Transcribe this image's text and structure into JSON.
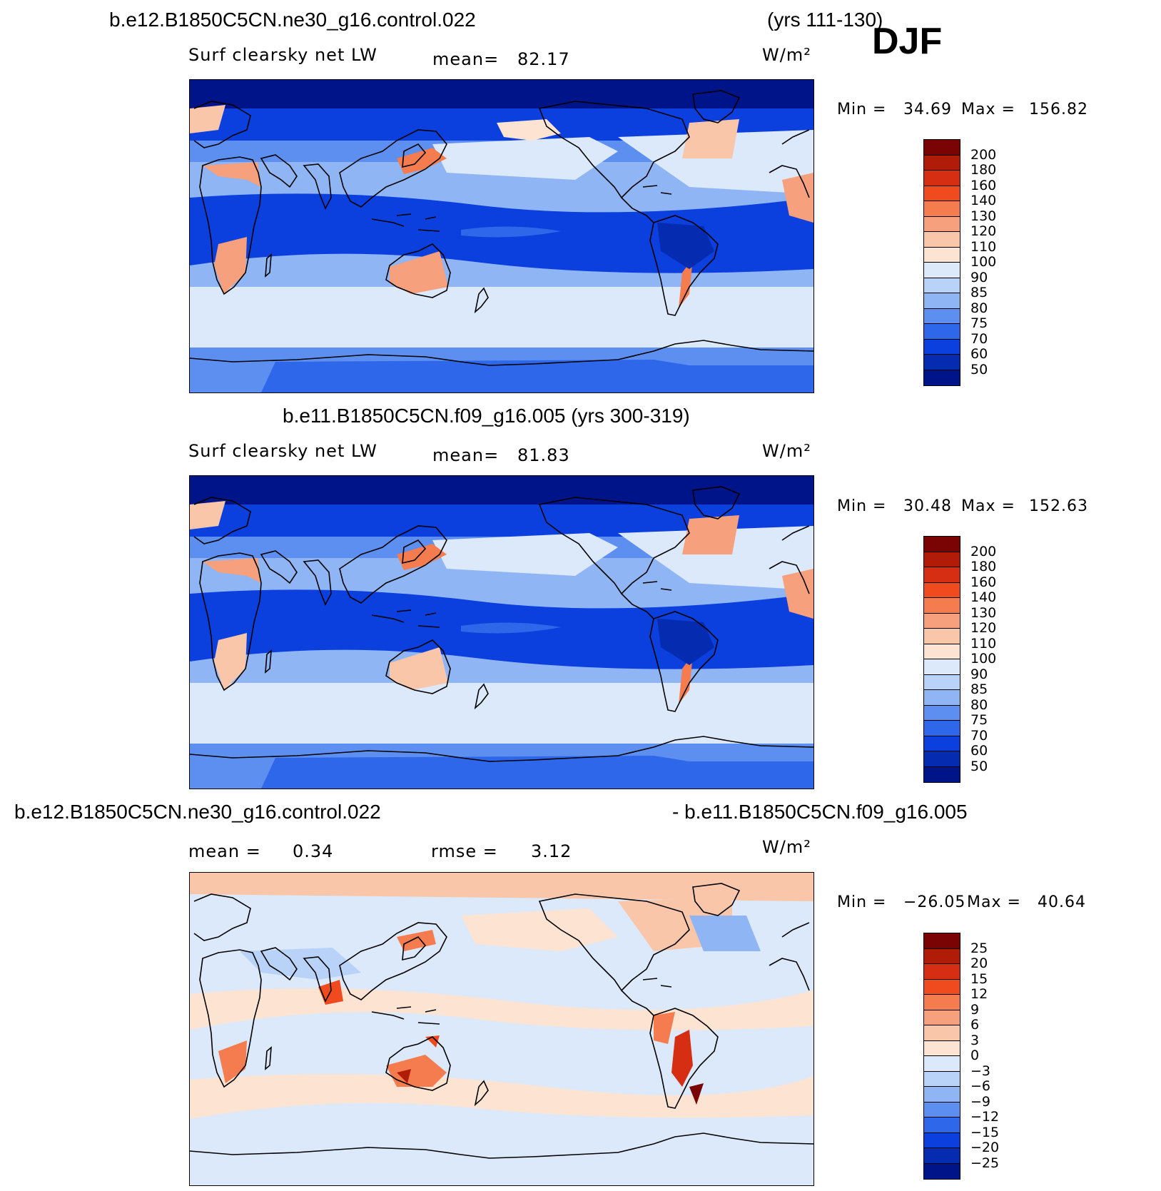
{
  "season": "DJF",
  "units_label": "W/m²",
  "panels": [
    {
      "case_title": "b.e12.B1850C5CN.ne30_g16.control.022",
      "years": "(yrs 111-130)",
      "variable": "Surf clearsky net LW",
      "stat_label": "mean=",
      "stat_value": "82.17",
      "min_label": "Min =",
      "min_value": "34.69",
      "max_label": "Max =",
      "max_value": "156.82",
      "levels": [
        "200",
        "180",
        "160",
        "140",
        "130",
        "120",
        "110",
        "100",
        "90",
        "85",
        "80",
        "75",
        "70",
        "60",
        "50"
      ],
      "colors": [
        "#7a0403",
        "#b01c07",
        "#d62e12",
        "#f04a1f",
        "#f47c4e",
        "#f7a07d",
        "#fac6aa",
        "#fde4d2",
        "#dbe9fb",
        "#b9d3f8",
        "#8fb5f4",
        "#5d8ff0",
        "#2f67ea",
        "#0b3fde",
        "#042bb0",
        "#001489"
      ]
    },
    {
      "case_title": "b.e11.B1850C5CN.f09_g16.005 (yrs 300-319)",
      "variable": "Surf clearsky net LW",
      "stat_label": "mean=",
      "stat_value": "81.83",
      "min_label": "Min =",
      "min_value": "30.48",
      "max_label": "Max =",
      "max_value": "152.63",
      "levels": [
        "200",
        "180",
        "160",
        "140",
        "130",
        "120",
        "110",
        "100",
        "90",
        "85",
        "80",
        "75",
        "70",
        "60",
        "50"
      ],
      "colors": [
        "#7a0403",
        "#b01c07",
        "#d62e12",
        "#f04a1f",
        "#f47c4e",
        "#f7a07d",
        "#fac6aa",
        "#fde4d2",
        "#dbe9fb",
        "#b9d3f8",
        "#8fb5f4",
        "#5d8ff0",
        "#2f67ea",
        "#0b3fde",
        "#042bb0",
        "#001489"
      ]
    },
    {
      "case_title_left": "b.e12.B1850C5CN.ne30_g16.control.022",
      "case_title_right": "- b.e11.B1850C5CN.f09_g16.005",
      "stat_label": "mean =",
      "stat_value": "0.34",
      "rmse_label": "rmse =",
      "rmse_value": "3.12",
      "min_label": "Min =",
      "min_value": "−26.05",
      "max_label": "Max =",
      "max_value": "40.64",
      "levels": [
        "25",
        "20",
        "15",
        "12",
        "9",
        "6",
        "3",
        "0",
        "−3",
        "−6",
        "−9",
        "−12",
        "−15",
        "−20",
        "−25"
      ],
      "colors": [
        "#7a0403",
        "#b01c07",
        "#d62e12",
        "#f04a1f",
        "#f47c4e",
        "#f7a07d",
        "#fac6aa",
        "#fde4d2",
        "#dbe9fb",
        "#b9d3f8",
        "#8fb5f4",
        "#5d8ff0",
        "#2f67ea",
        "#0b3fde",
        "#042bb0",
        "#001489"
      ]
    }
  ]
}
